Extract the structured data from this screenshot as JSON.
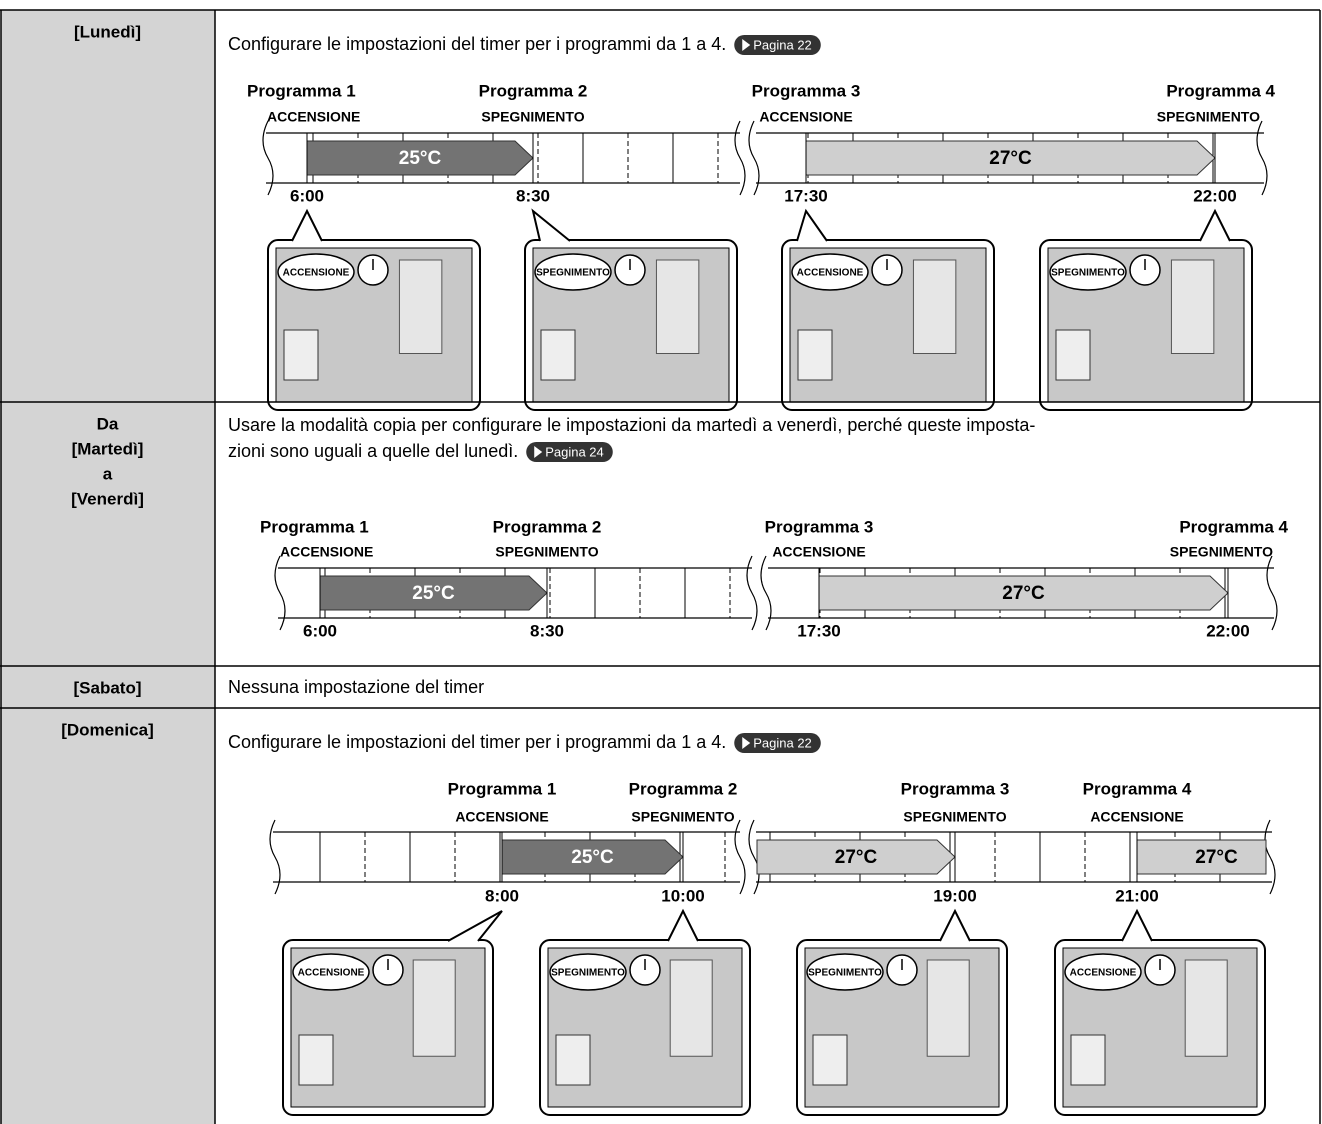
{
  "rows": [
    {
      "day": [
        "[Lunedì]"
      ],
      "text": [
        "Configurare le impostazioni del timer per i programmi da 1 a 4."
      ],
      "link": "Pagina 22",
      "timeline": {
        "programs": [
          {
            "name": "Programma 1",
            "action": "ACCENSIONE"
          },
          {
            "name": "Programma 2",
            "action": "SPEGNIMENTO"
          },
          {
            "name": "Programma 3",
            "action": "ACCENSIONE"
          },
          {
            "name": "Programma 4",
            "action": "SPEGNIMENTO"
          }
        ],
        "times": [
          "6:00",
          "8:30",
          "17:30",
          "22:00"
        ],
        "temps": [
          "25°C",
          "27°C"
        ]
      },
      "scenes": [
        "ACCENSIONE",
        "SPEGNIMENTO",
        "ACCENSIONE",
        "SPEGNIMENTO"
      ]
    },
    {
      "day": [
        "Da",
        "[Martedì]",
        "a",
        "[Venerdì]"
      ],
      "text": [
        "Usare la modalità copia per configurare le impostazioni da martedì a venerdì, perché queste imposta-",
        "zioni sono uguali a quelle del lunedì."
      ],
      "link": "Pagina 24",
      "timeline": {
        "programs": [
          {
            "name": "Programma 1",
            "action": "ACCENSIONE"
          },
          {
            "name": "Programma 2",
            "action": "SPEGNIMENTO"
          },
          {
            "name": "Programma 3",
            "action": "ACCENSIONE"
          },
          {
            "name": "Programma 4",
            "action": "SPEGNIMENTO"
          }
        ],
        "times": [
          "6:00",
          "8:30",
          "17:30",
          "22:00"
        ],
        "temps": [
          "25°C",
          "27°C"
        ]
      }
    },
    {
      "day": [
        "[Sabato]"
      ],
      "text": [
        "Nessuna impostazione del timer"
      ]
    },
    {
      "day": [
        "[Domenica]"
      ],
      "text": [
        "Configurare le impostazioni del timer per i programmi da 1 a 4."
      ],
      "link": "Pagina 22",
      "timeline": {
        "programs": [
          {
            "name": "Programma 1",
            "action": "ACCENSIONE"
          },
          {
            "name": "Programma 2",
            "action": "SPEGNIMENTO"
          },
          {
            "name": "Programma 3",
            "action": "SPEGNIMENTO"
          },
          {
            "name": "Programma 4",
            "action": "ACCENSIONE"
          }
        ],
        "times": [
          "8:00",
          "10:00",
          "19:00",
          "21:00"
        ],
        "temps": [
          "25°C",
          "27°C",
          "27°C"
        ]
      },
      "scenes": [
        "ACCENSIONE",
        "SPEGNIMENTO",
        "SPEGNIMENTO",
        "ACCENSIONE"
      ]
    }
  ]
}
